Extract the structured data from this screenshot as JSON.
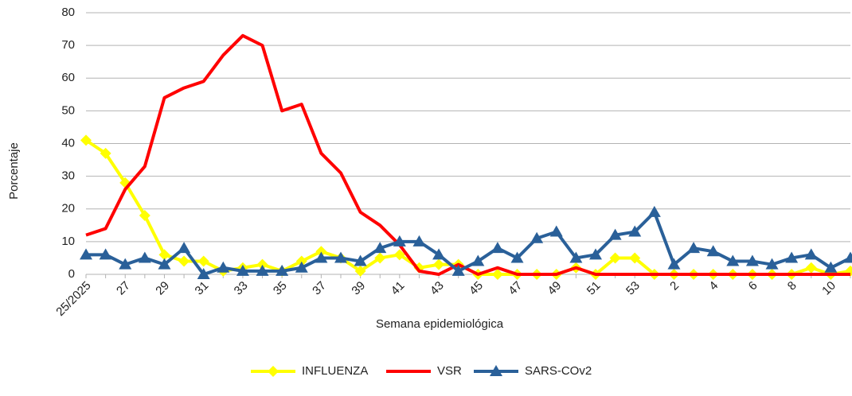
{
  "chart_data": {
    "type": "line",
    "x_label": "Semana epidemiológica",
    "y_label": "Porcentaje",
    "categories": [
      "25/2025",
      null,
      "27",
      null,
      "29",
      null,
      "31",
      null,
      "33",
      null,
      "35",
      null,
      "37",
      null,
      "39",
      null,
      "41",
      null,
      "43",
      null,
      "45",
      null,
      "47",
      null,
      "49",
      null,
      "51",
      null,
      "53",
      null,
      "2",
      null,
      "4",
      null,
      "6",
      null,
      "8",
      null,
      "10",
      null
    ],
    "series": [
      {
        "name": "INFLUENZA",
        "color": "#ffff00",
        "marker": "diamond",
        "values": [
          41,
          37,
          28,
          18,
          6,
          4,
          4,
          1,
          2,
          3,
          1,
          4,
          7,
          5,
          1,
          5,
          6,
          2,
          3,
          3,
          0,
          0,
          0,
          0,
          0,
          2,
          0,
          5,
          5,
          0,
          0,
          0,
          0,
          0,
          0,
          0,
          0,
          2,
          0,
          1
        ]
      },
      {
        "name": "VSR",
        "color": "#ff0000",
        "marker": "none",
        "values": [
          12,
          14,
          26,
          33,
          54,
          57,
          59,
          67,
          73,
          70,
          50,
          52,
          37,
          31,
          19,
          15,
          9,
          1,
          0,
          3,
          0,
          2,
          0,
          0,
          0,
          2,
          0,
          0,
          0,
          0,
          0,
          0,
          0,
          0,
          0,
          0,
          0,
          0,
          0,
          0
        ]
      },
      {
        "name": "SARS-COv2",
        "color": "#2a6099",
        "marker": "triangle",
        "values": [
          6,
          6,
          3,
          5,
          3,
          8,
          0,
          2,
          1,
          1,
          1,
          2,
          5,
          5,
          4,
          8,
          10,
          10,
          6,
          1,
          4,
          8,
          5,
          11,
          13,
          5,
          6,
          12,
          13,
          19,
          3,
          8,
          7,
          4,
          4,
          3,
          5,
          6,
          2,
          5
        ]
      }
    ],
    "ylim": [
      0,
      80
    ],
    "yticks": [
      0,
      10,
      20,
      30,
      40,
      50,
      60,
      70,
      80
    ],
    "grid": true,
    "legend": "bottom"
  }
}
